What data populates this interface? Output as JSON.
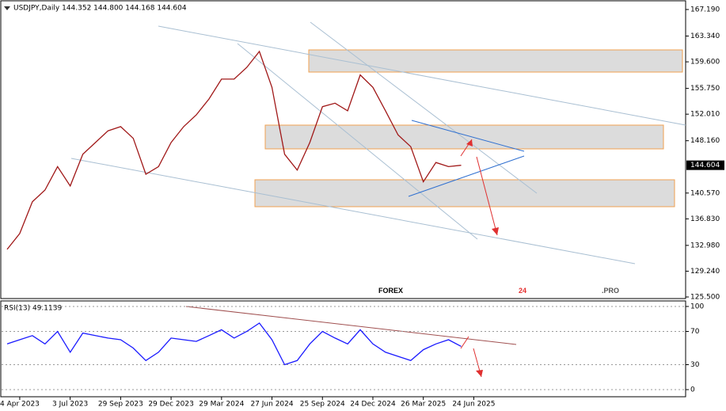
{
  "chart_data": [
    {
      "type": "line",
      "title": "USDJPY,Daily 144.352 144.800 144.168 144.604",
      "color": "#a01818",
      "categories": [
        null,
        "4 Apr 2023",
        null,
        null,
        null,
        "3 Jul 2023",
        null,
        null,
        null,
        "29 Sep 2023",
        null,
        null,
        null,
        "29 Dec 2023",
        null,
        null,
        null,
        "29 Mar 2024",
        null,
        null,
        null,
        "27 Jun 2024",
        null,
        null,
        null,
        "25 Sep 2024",
        null,
        null,
        null,
        "24 Dec 2024",
        null,
        null,
        null,
        "26 Mar 2025",
        null,
        null,
        null,
        "24 Jun 2025"
      ],
      "values": [
        132.4,
        134.7,
        139.3,
        141.0,
        144.4,
        141.6,
        146.2,
        147.9,
        149.6,
        150.2,
        148.5,
        143.3,
        144.4,
        147.9,
        150.2,
        151.9,
        154.2,
        157.1,
        157.1,
        158.8,
        161.1,
        155.9,
        146.2,
        143.9,
        147.9,
        153.1,
        153.6,
        152.5,
        157.7,
        155.9,
        152.5,
        149.0,
        147.3,
        142.2,
        145.0,
        144.4,
        144.6,
        null
      ],
      "ylim": [
        125.5,
        167.19
      ],
      "yticks": [
        {
          "value": 167.19,
          "label": "167.190"
        },
        {
          "value": 163.34,
          "label": "163.340"
        },
        {
          "value": 159.6,
          "label": "159.600"
        },
        {
          "value": 155.75,
          "label": "155.750"
        },
        {
          "value": 152.01,
          "label": "152.010"
        },
        {
          "value": 148.16,
          "label": "148.160"
        },
        {
          "value": 140.57,
          "label": "140.570"
        },
        {
          "value": 136.83,
          "label": "136.830"
        },
        {
          "value": 132.98,
          "label": "132.980"
        },
        {
          "value": 129.24,
          "label": "129.240"
        },
        {
          "value": 125.5,
          "label": "125.500"
        }
      ],
      "last_price": 144.604
    },
    {
      "type": "line",
      "title": "RSI(13) 49.1139",
      "color": "#1a1aff",
      "values": [
        55,
        60,
        65,
        55,
        70,
        45,
        68,
        65,
        62,
        60,
        50,
        35,
        45,
        62,
        60,
        58,
        65,
        72,
        62,
        70,
        80,
        60,
        30,
        35,
        55,
        70,
        62,
        55,
        72,
        55,
        45,
        40,
        35,
        48,
        55,
        60,
        52,
        null
      ],
      "ylim": [
        0,
        100
      ],
      "yticks": [
        100,
        70,
        30,
        0
      ],
      "grid": true
    }
  ],
  "watermark": {
    "parts": [
      "FOREX",
      "24",
      ".PRO"
    ]
  }
}
